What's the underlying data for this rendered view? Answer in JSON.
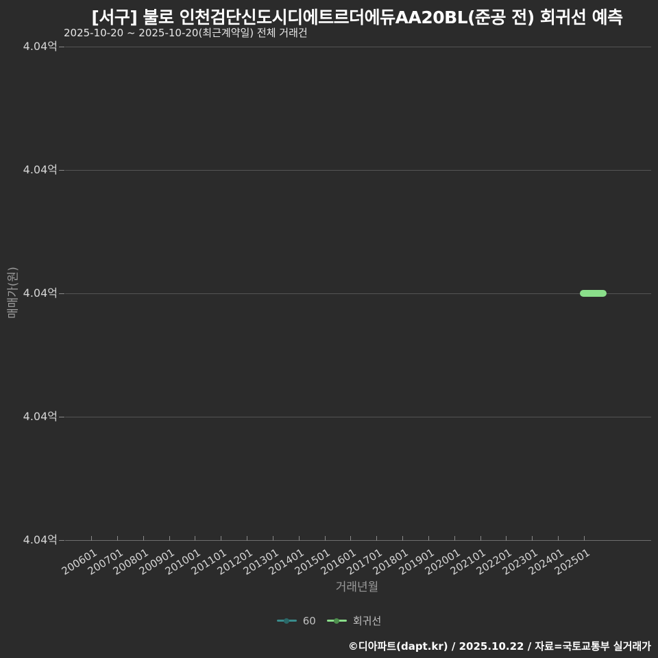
{
  "header": {
    "title": "[서구] 불로 인천검단신도시디에트르더에듀AA20BL(준공 전) 회귀선 예측",
    "subtitle": "2025-10-20 ~ 2025-10-20(최근계약일) 전체 거래건"
  },
  "footer": {
    "credit": "©디아파트(dapt.kr) / 2025.10.22 / 자료=국토교통부 실거래가"
  },
  "colors": {
    "background": "#2b2b2b",
    "title": "#ffffff",
    "subtitle": "#e8e8e8",
    "gridline": "#555555",
    "axis_line": "#6f6f6f",
    "tick_mark": "#8a8a8a",
    "tick_label": "#d6d6d6",
    "axis_title": "#9a9a9a",
    "legend_label": "#c0c0c0"
  },
  "chart_data": {
    "type": "line",
    "title": "[서구] 불로 인천검단신도시디에트르더에듀AA20BL(준공 전) 회귀선 예측",
    "subtitle": "2025-10-20 ~ 2025-10-20(최근계약일) 전체 거래건",
    "xlabel": "거래년월",
    "ylabel": "매매가(원)",
    "x_tick_labels": [
      "200601",
      "200701",
      "200801",
      "200901",
      "201001",
      "201101",
      "201201",
      "201301",
      "201401",
      "201501",
      "201601",
      "201701",
      "201801",
      "201901",
      "202001",
      "202101",
      "202201",
      "202301",
      "202401",
      "202501"
    ],
    "y_tick_labels": [
      "4.04억",
      "4.04억",
      "4.04억",
      "4.04억",
      "4.04억"
    ],
    "ylim": [
      "4.04억",
      "4.04억"
    ],
    "grid": true,
    "legend_position": "bottom-center",
    "series": [
      {
        "name": "60",
        "line_color": "#3a8c8c",
        "dot_color": "#2a6868",
        "points": []
      },
      {
        "name": "회귀선",
        "line_color": "#8ade8a",
        "dot_color": "#4d8f4d",
        "points": [
          {
            "x": "202510",
            "y": "4.04억",
            "y_value_won": 404000000
          }
        ]
      }
    ]
  }
}
